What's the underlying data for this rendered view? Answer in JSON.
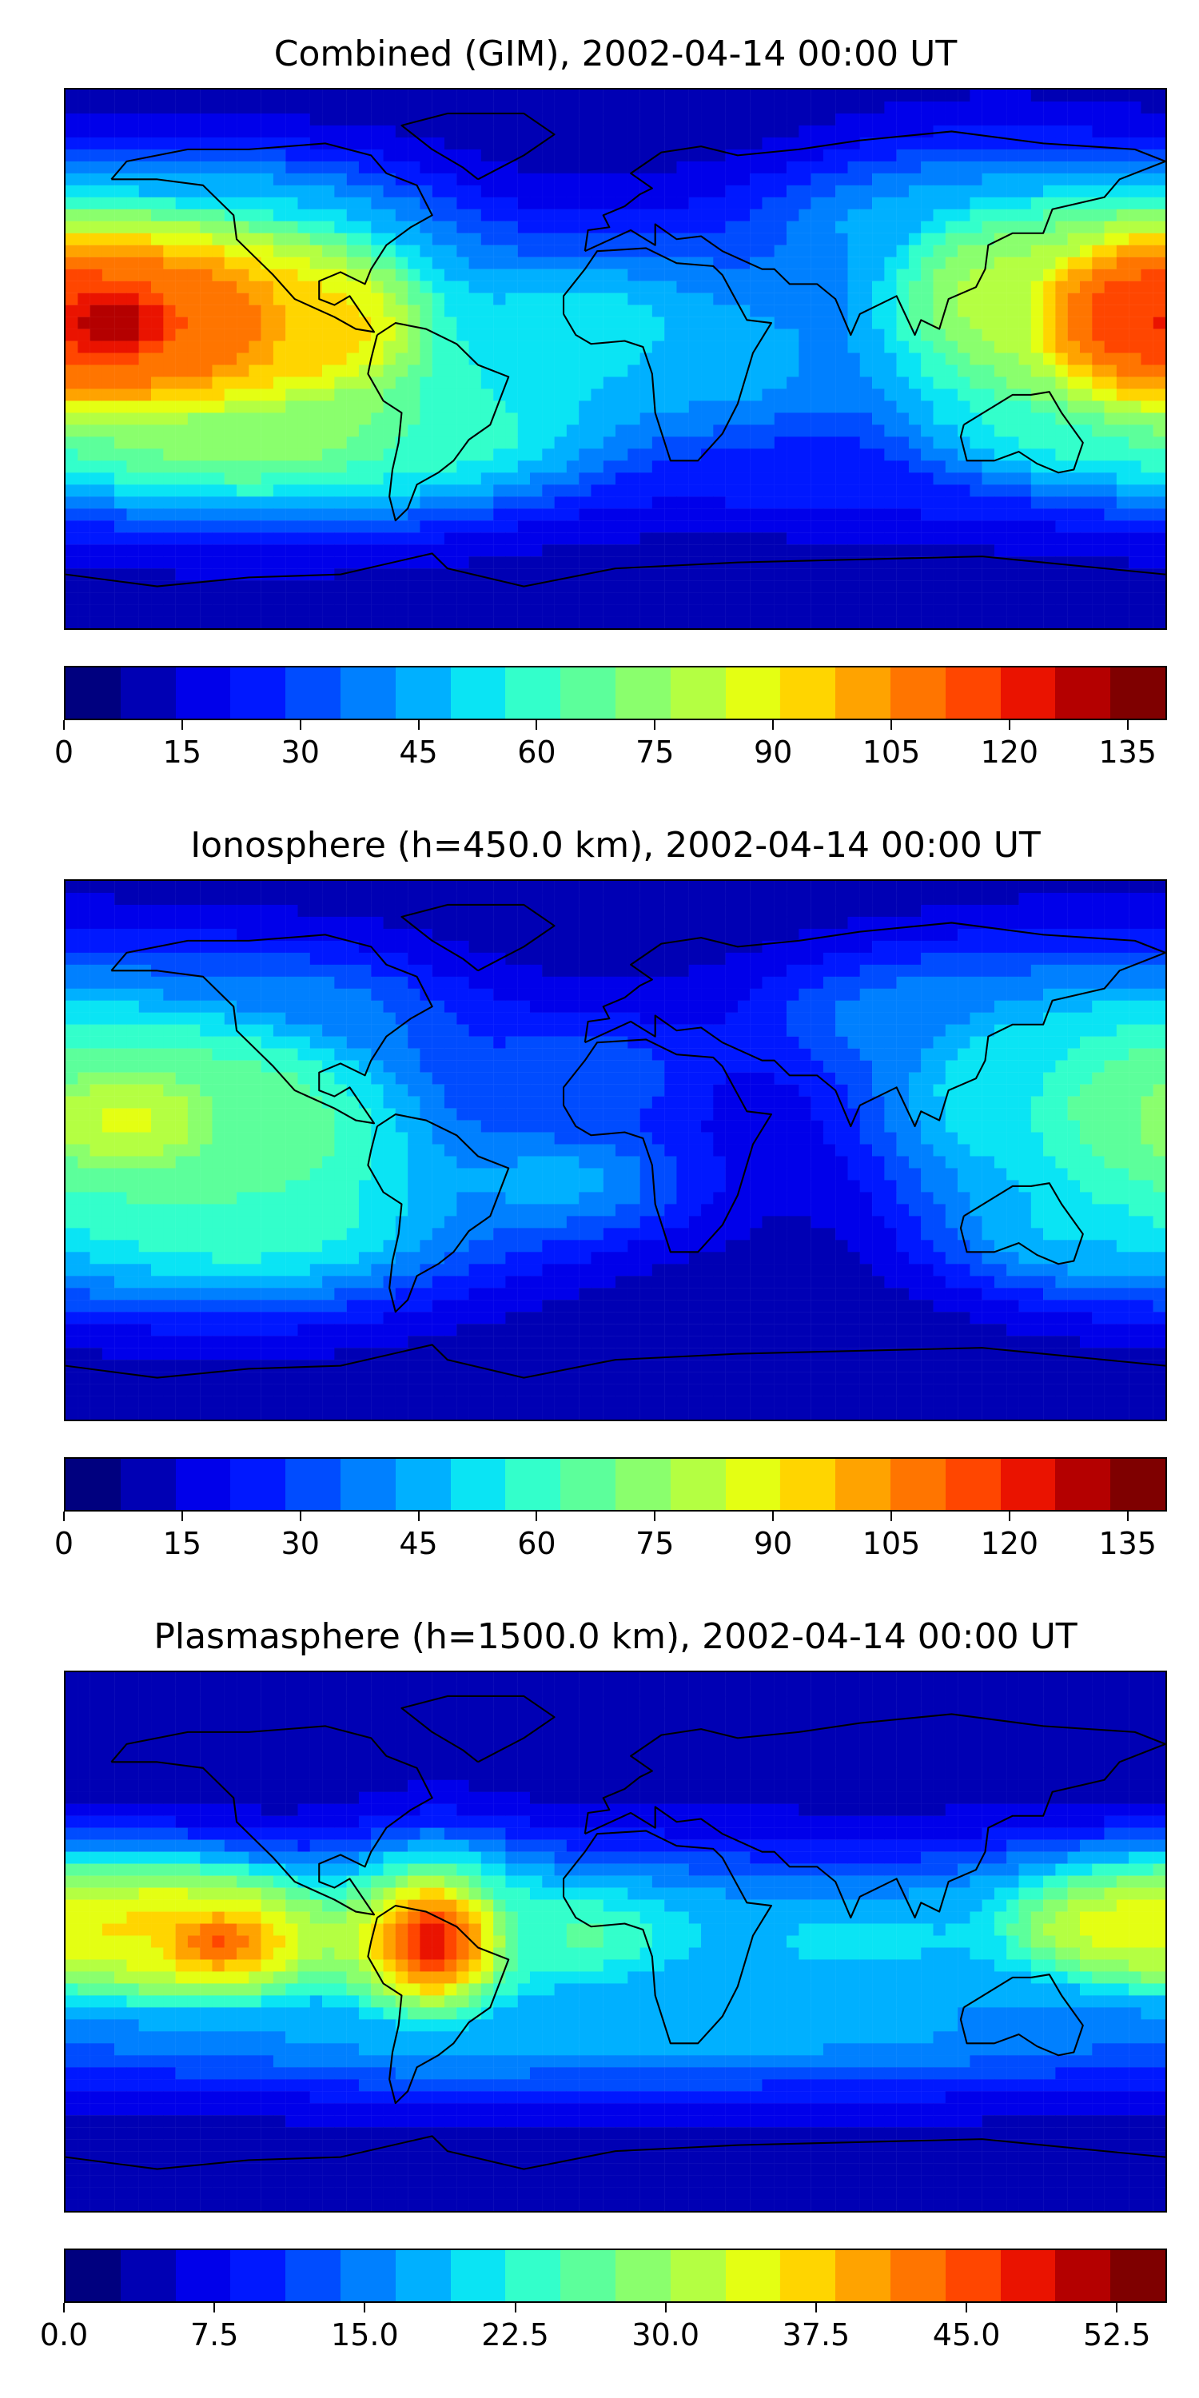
{
  "colors": [
    "#00007f",
    "#0000b4",
    "#0000ea",
    "#0018ff",
    "#004cff",
    "#0080ff",
    "#00b0ff",
    "#0ae4f4",
    "#33ffcb",
    "#5cff9b",
    "#8aff6d",
    "#b4ff42",
    "#e4ff13",
    "#ffd500",
    "#ffa300",
    "#ff7500",
    "#ff4600",
    "#ea1300",
    "#b40000",
    "#7f0000"
  ],
  "panels": [
    {
      "title": "Combined (GIM), 2002-04-14 00:00 UT",
      "vmax": 140,
      "ticks": [
        "0",
        "15",
        "30",
        "45",
        "60",
        "75",
        "90",
        "105",
        "120",
        "135"
      ],
      "tick_values": [
        0,
        15,
        30,
        45,
        60,
        75,
        90,
        105,
        120,
        135
      ],
      "features": [
        {
          "lon": -165,
          "lat": 12,
          "value": 130,
          "sx": 40,
          "sy": 22
        },
        {
          "lon": -135,
          "lat": 12,
          "value": 110,
          "sx": 40,
          "sy": 24
        },
        {
          "lon": -95,
          "lat": 10,
          "value": 95,
          "sx": 30,
          "sy": 22
        },
        {
          "lon": 170,
          "lat": 15,
          "value": 115,
          "sx": 30,
          "sy": 22
        },
        {
          "lon": 125,
          "lat": 20,
          "value": 80,
          "sx": 35,
          "sy": 28
        },
        {
          "lon": -10,
          "lat": 10,
          "value": 55,
          "sx": 45,
          "sy": 22
        },
        {
          "lon": 40,
          "lat": 0,
          "value": 45,
          "sx": 30,
          "sy": 20
        },
        {
          "lon": -120,
          "lat": -25,
          "value": 75,
          "sx": 60,
          "sy": 20
        },
        {
          "lon": -60,
          "lat": -25,
          "value": 60,
          "sx": 40,
          "sy": 15
        },
        {
          "lon": 150,
          "lat": -20,
          "value": 60,
          "sx": 35,
          "sy": 15
        },
        {
          "lon": -120,
          "lat": 45,
          "value": 50,
          "sx": 40,
          "sy": 15
        },
        {
          "lon": 100,
          "lat": 45,
          "value": 45,
          "sx": 40,
          "sy": 15
        },
        {
          "lon": 80,
          "lat": -40,
          "value": 25,
          "sx": 60,
          "sy": 12
        }
      ]
    },
    {
      "title": "Ionosphere  (h=450.0 km), 2002-04-14 00:00 UT",
      "vmax": 140,
      "ticks": [
        "0",
        "15",
        "30",
        "45",
        "60",
        "75",
        "90",
        "105",
        "120",
        "135"
      ],
      "tick_values": [
        0,
        15,
        30,
        45,
        60,
        75,
        90,
        105,
        120,
        135
      ],
      "features": [
        {
          "lon": -160,
          "lat": 10,
          "value": 85,
          "sx": 45,
          "sy": 25
        },
        {
          "lon": -120,
          "lat": 5,
          "value": 70,
          "sx": 45,
          "sy": 28
        },
        {
          "lon": -120,
          "lat": -25,
          "value": 60,
          "sx": 50,
          "sy": 18
        },
        {
          "lon": 170,
          "lat": 15,
          "value": 65,
          "sx": 35,
          "sy": 28
        },
        {
          "lon": 130,
          "lat": 20,
          "value": 55,
          "sx": 35,
          "sy": 25
        },
        {
          "lon": 150,
          "lat": -25,
          "value": 50,
          "sx": 30,
          "sy": 15
        },
        {
          "lon": -20,
          "lat": -10,
          "value": 45,
          "sx": 35,
          "sy": 15
        },
        {
          "lon": -110,
          "lat": 45,
          "value": 40,
          "sx": 40,
          "sy": 15
        },
        {
          "lon": 100,
          "lat": 45,
          "value": 40,
          "sx": 40,
          "sy": 15
        },
        {
          "lon": -10,
          "lat": 25,
          "value": 35,
          "sx": 30,
          "sy": 15
        }
      ]
    },
    {
      "title": "Plasmasphere (h=1500.0 km), 2002-04-14 00:00 UT",
      "vmax": 55,
      "ticks": [
        "0.0",
        "7.5",
        "15.0",
        "22.5",
        "30.0",
        "37.5",
        "45.0",
        "52.5"
      ],
      "tick_values": [
        0,
        7.5,
        15,
        22.5,
        30,
        37.5,
        45,
        52.5
      ],
      "features": [
        {
          "lon": -60,
          "lat": 0,
          "value": 48,
          "sx": 22,
          "sy": 20
        },
        {
          "lon": -130,
          "lat": 0,
          "value": 44,
          "sx": 28,
          "sy": 15
        },
        {
          "lon": -160,
          "lat": 5,
          "value": 36,
          "sx": 40,
          "sy": 16
        },
        {
          "lon": 165,
          "lat": 5,
          "value": 34,
          "sx": 35,
          "sy": 15
        },
        {
          "lon": -10,
          "lat": 2,
          "value": 25,
          "sx": 40,
          "sy": 18
        },
        {
          "lon": 80,
          "lat": 0,
          "value": 20,
          "sx": 60,
          "sy": 20
        },
        {
          "lon": 10,
          "lat": 5,
          "value": 12,
          "sx": 15,
          "sy": 10
        },
        {
          "lon": 0,
          "lat": -30,
          "value": 18,
          "sx": 180,
          "sy": 15
        }
      ]
    }
  ]
}
